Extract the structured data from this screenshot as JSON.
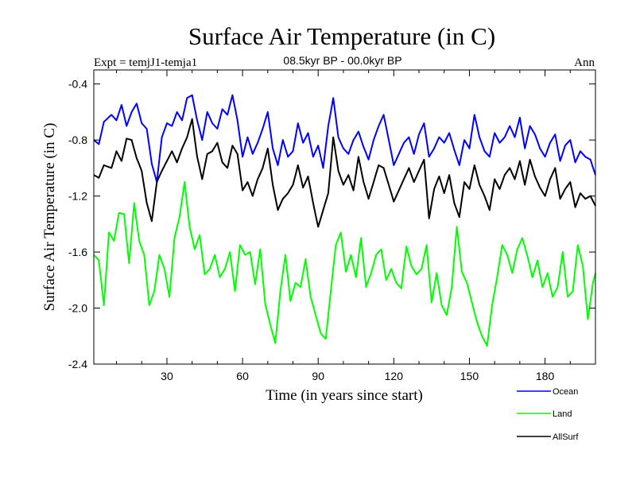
{
  "chart_data": {
    "type": "line",
    "title": "Surface Air Temperature (in C)",
    "subtitle": "08.5kyr BP - 00.0kyr BP",
    "experiment_label": "Expt = temjJ1-temja1",
    "season_label": "Ann",
    "xlabel": "Time (in years since start)",
    "ylabel": "Surface Air Temperature (in C)",
    "xlim": [
      1,
      200
    ],
    "ylim": [
      -2.4,
      -0.3
    ],
    "xticks": [
      30,
      60,
      90,
      120,
      150,
      180
    ],
    "xtick_labels": [
      "30",
      "60",
      "90",
      "120",
      "150",
      "180"
    ],
    "yticks": [
      -0.4,
      -0.8,
      -1.2,
      -1.6,
      -2.0,
      -2.4
    ],
    "ytick_labels": [
      "-0.4",
      "-0.8",
      "-1.2",
      "-1.6",
      "-2.0",
      "-2.4"
    ],
    "legend_position": "bottom-right",
    "series": [
      {
        "name": "Ocean",
        "color": "#0000ff",
        "anchors": [
          [
            1,
            -0.8
          ],
          [
            3,
            -0.83
          ],
          [
            5,
            -0.67
          ],
          [
            8,
            -0.62
          ],
          [
            10,
            -0.66
          ],
          [
            12,
            -0.55
          ],
          [
            14,
            -0.7
          ],
          [
            16,
            -0.6
          ],
          [
            18,
            -0.54
          ],
          [
            20,
            -0.68
          ],
          [
            22,
            -0.72
          ],
          [
            24,
            -0.97
          ],
          [
            26,
            -1.1
          ],
          [
            28,
            -0.78
          ],
          [
            30,
            -0.68
          ],
          [
            32,
            -0.7
          ],
          [
            34,
            -0.6
          ],
          [
            36,
            -0.66
          ],
          [
            38,
            -0.5
          ],
          [
            40,
            -0.48
          ],
          [
            42,
            -0.66
          ],
          [
            44,
            -0.8
          ],
          [
            46,
            -0.6
          ],
          [
            48,
            -0.68
          ],
          [
            50,
            -0.72
          ],
          [
            52,
            -0.58
          ],
          [
            54,
            -0.62
          ],
          [
            56,
            -0.48
          ],
          [
            58,
            -0.66
          ],
          [
            60,
            -0.92
          ],
          [
            62,
            -0.78
          ],
          [
            64,
            -0.9
          ],
          [
            66,
            -0.82
          ],
          [
            68,
            -0.72
          ],
          [
            70,
            -0.6
          ],
          [
            72,
            -0.86
          ],
          [
            74,
            -0.98
          ],
          [
            76,
            -0.8
          ],
          [
            78,
            -0.92
          ],
          [
            80,
            -0.88
          ],
          [
            82,
            -0.68
          ],
          [
            84,
            -0.82
          ],
          [
            86,
            -0.75
          ],
          [
            88,
            -0.92
          ],
          [
            90,
            -0.84
          ],
          [
            92,
            -1.0
          ],
          [
            94,
            -0.7
          ],
          [
            96,
            -0.5
          ],
          [
            98,
            -0.78
          ],
          [
            100,
            -0.86
          ],
          [
            102,
            -0.9
          ],
          [
            104,
            -0.8
          ],
          [
            106,
            -0.74
          ],
          [
            108,
            -0.85
          ],
          [
            110,
            -0.94
          ],
          [
            112,
            -0.8
          ],
          [
            114,
            -0.7
          ],
          [
            116,
            -0.62
          ],
          [
            118,
            -0.8
          ],
          [
            120,
            -0.98
          ],
          [
            122,
            -0.9
          ],
          [
            124,
            -0.82
          ],
          [
            126,
            -0.78
          ],
          [
            128,
            -0.9
          ],
          [
            130,
            -0.76
          ],
          [
            132,
            -0.68
          ],
          [
            134,
            -0.92
          ],
          [
            136,
            -0.86
          ],
          [
            138,
            -0.78
          ],
          [
            140,
            -0.82
          ],
          [
            142,
            -0.75
          ],
          [
            144,
            -0.87
          ],
          [
            146,
            -0.98
          ],
          [
            148,
            -0.8
          ],
          [
            150,
            -0.86
          ],
          [
            152,
            -0.62
          ],
          [
            154,
            -0.78
          ],
          [
            156,
            -0.88
          ],
          [
            158,
            -0.92
          ],
          [
            160,
            -0.75
          ],
          [
            162,
            -0.82
          ],
          [
            164,
            -0.78
          ],
          [
            166,
            -0.7
          ],
          [
            168,
            -0.78
          ],
          [
            170,
            -0.64
          ],
          [
            172,
            -0.86
          ],
          [
            174,
            -0.7
          ],
          [
            176,
            -0.76
          ],
          [
            178,
            -0.86
          ],
          [
            180,
            -0.92
          ],
          [
            182,
            -0.82
          ],
          [
            184,
            -0.76
          ],
          [
            186,
            -0.95
          ],
          [
            188,
            -0.84
          ],
          [
            190,
            -0.8
          ],
          [
            192,
            -0.96
          ],
          [
            194,
            -0.88
          ],
          [
            196,
            -0.92
          ],
          [
            198,
            -0.94
          ],
          [
            200,
            -1.05
          ]
        ]
      },
      {
        "name": "Land",
        "color": "#00ff00",
        "anchors": [
          [
            1,
            -1.62
          ],
          [
            3,
            -1.66
          ],
          [
            5,
            -1.98
          ],
          [
            7,
            -1.46
          ],
          [
            9,
            -1.52
          ],
          [
            11,
            -1.32
          ],
          [
            13,
            -1.33
          ],
          [
            15,
            -1.68
          ],
          [
            17,
            -1.25
          ],
          [
            19,
            -1.52
          ],
          [
            21,
            -1.62
          ],
          [
            23,
            -1.98
          ],
          [
            25,
            -1.88
          ],
          [
            27,
            -1.62
          ],
          [
            29,
            -1.72
          ],
          [
            31,
            -1.92
          ],
          [
            33,
            -1.5
          ],
          [
            35,
            -1.35
          ],
          [
            37,
            -1.1
          ],
          [
            39,
            -1.42
          ],
          [
            41,
            -1.58
          ],
          [
            43,
            -1.48
          ],
          [
            45,
            -1.76
          ],
          [
            47,
            -1.72
          ],
          [
            49,
            -1.62
          ],
          [
            51,
            -1.78
          ],
          [
            53,
            -1.72
          ],
          [
            55,
            -1.6
          ],
          [
            57,
            -1.88
          ],
          [
            59,
            -1.55
          ],
          [
            61,
            -1.62
          ],
          [
            63,
            -1.6
          ],
          [
            65,
            -1.83
          ],
          [
            67,
            -1.58
          ],
          [
            69,
            -1.97
          ],
          [
            71,
            -2.12
          ],
          [
            73,
            -2.25
          ],
          [
            75,
            -1.88
          ],
          [
            77,
            -1.62
          ],
          [
            79,
            -1.95
          ],
          [
            81,
            -1.82
          ],
          [
            83,
            -1.85
          ],
          [
            85,
            -1.65
          ],
          [
            87,
            -1.92
          ],
          [
            89,
            -2.05
          ],
          [
            91,
            -2.18
          ],
          [
            93,
            -2.22
          ],
          [
            95,
            -1.88
          ],
          [
            97,
            -1.55
          ],
          [
            99,
            -1.46
          ],
          [
            101,
            -1.74
          ],
          [
            103,
            -1.62
          ],
          [
            105,
            -1.78
          ],
          [
            107,
            -1.5
          ],
          [
            109,
            -1.85
          ],
          [
            111,
            -1.75
          ],
          [
            113,
            -1.62
          ],
          [
            115,
            -1.58
          ],
          [
            117,
            -1.8
          ],
          [
            119,
            -1.72
          ],
          [
            121,
            -1.82
          ],
          [
            123,
            -1.86
          ],
          [
            125,
            -1.56
          ],
          [
            127,
            -1.7
          ],
          [
            129,
            -1.76
          ],
          [
            131,
            -1.72
          ],
          [
            133,
            -1.55
          ],
          [
            135,
            -1.96
          ],
          [
            137,
            -1.75
          ],
          [
            139,
            -1.98
          ],
          [
            141,
            -2.05
          ],
          [
            143,
            -1.85
          ],
          [
            145,
            -1.42
          ],
          [
            147,
            -1.74
          ],
          [
            149,
            -1.82
          ],
          [
            151,
            -1.96
          ],
          [
            153,
            -2.1
          ],
          [
            155,
            -2.2
          ],
          [
            157,
            -2.27
          ],
          [
            159,
            -1.98
          ],
          [
            161,
            -1.78
          ],
          [
            163,
            -1.55
          ],
          [
            165,
            -1.62
          ],
          [
            167,
            -1.75
          ],
          [
            169,
            -1.58
          ],
          [
            171,
            -1.5
          ],
          [
            173,
            -1.63
          ],
          [
            175,
            -1.78
          ],
          [
            177,
            -1.66
          ],
          [
            179,
            -1.85
          ],
          [
            181,
            -1.75
          ],
          [
            183,
            -1.92
          ],
          [
            185,
            -1.85
          ],
          [
            187,
            -1.6
          ],
          [
            189,
            -1.92
          ],
          [
            191,
            -1.88
          ],
          [
            193,
            -1.55
          ],
          [
            195,
            -1.7
          ],
          [
            197,
            -2.08
          ],
          [
            199,
            -1.82
          ],
          [
            200,
            -1.75
          ]
        ]
      },
      {
        "name": "AllSurf",
        "color": "#000000",
        "anchors": [
          [
            1,
            -1.05
          ],
          [
            3,
            -1.07
          ],
          [
            5,
            -0.98
          ],
          [
            8,
            -1.0
          ],
          [
            10,
            -0.88
          ],
          [
            12,
            -0.95
          ],
          [
            14,
            -0.79
          ],
          [
            16,
            -0.8
          ],
          [
            18,
            -0.93
          ],
          [
            20,
            -1.02
          ],
          [
            22,
            -1.25
          ],
          [
            24,
            -1.38
          ],
          [
            26,
            -1.1
          ],
          [
            28,
            -1.02
          ],
          [
            30,
            -0.95
          ],
          [
            32,
            -0.88
          ],
          [
            34,
            -0.96
          ],
          [
            36,
            -0.86
          ],
          [
            38,
            -0.78
          ],
          [
            40,
            -0.65
          ],
          [
            42,
            -0.92
          ],
          [
            44,
            -1.08
          ],
          [
            46,
            -0.9
          ],
          [
            48,
            -0.88
          ],
          [
            50,
            -0.82
          ],
          [
            52,
            -0.96
          ],
          [
            54,
            -1.0
          ],
          [
            56,
            -0.84
          ],
          [
            58,
            -0.9
          ],
          [
            60,
            -1.16
          ],
          [
            62,
            -1.1
          ],
          [
            64,
            -1.2
          ],
          [
            66,
            -1.08
          ],
          [
            68,
            -1.0
          ],
          [
            70,
            -0.86
          ],
          [
            72,
            -1.12
          ],
          [
            74,
            -1.3
          ],
          [
            76,
            -1.22
          ],
          [
            78,
            -1.18
          ],
          [
            80,
            -1.12
          ],
          [
            82,
            -0.98
          ],
          [
            84,
            -1.14
          ],
          [
            86,
            -1.06
          ],
          [
            88,
            -1.25
          ],
          [
            90,
            -1.42
          ],
          [
            92,
            -1.3
          ],
          [
            94,
            -1.18
          ],
          [
            96,
            -0.78
          ],
          [
            98,
            -1.02
          ],
          [
            100,
            -1.12
          ],
          [
            102,
            -1.05
          ],
          [
            104,
            -1.16
          ],
          [
            106,
            -0.92
          ],
          [
            108,
            -1.1
          ],
          [
            110,
            -1.22
          ],
          [
            112,
            -1.1
          ],
          [
            114,
            -0.98
          ],
          [
            116,
            -1.0
          ],
          [
            118,
            -1.12
          ],
          [
            120,
            -1.24
          ],
          [
            122,
            -1.16
          ],
          [
            124,
            -1.08
          ],
          [
            126,
            -1.0
          ],
          [
            128,
            -1.1
          ],
          [
            130,
            -1.02
          ],
          [
            132,
            -0.94
          ],
          [
            134,
            -1.36
          ],
          [
            136,
            -1.15
          ],
          [
            138,
            -1.06
          ],
          [
            140,
            -1.18
          ],
          [
            142,
            -1.05
          ],
          [
            144,
            -1.25
          ],
          [
            146,
            -1.35
          ],
          [
            148,
            -1.1
          ],
          [
            150,
            -1.15
          ],
          [
            152,
            -0.98
          ],
          [
            154,
            -1.12
          ],
          [
            156,
            -1.2
          ],
          [
            158,
            -1.3
          ],
          [
            160,
            -1.08
          ],
          [
            162,
            -1.15
          ],
          [
            164,
            -1.05
          ],
          [
            166,
            -1.0
          ],
          [
            168,
            -1.08
          ],
          [
            170,
            -0.95
          ],
          [
            172,
            -1.12
          ],
          [
            174,
            -0.94
          ],
          [
            176,
            -1.06
          ],
          [
            178,
            -1.14
          ],
          [
            180,
            -1.2
          ],
          [
            182,
            -1.08
          ],
          [
            184,
            -1.0
          ],
          [
            186,
            -1.22
          ],
          [
            188,
            -1.15
          ],
          [
            190,
            -1.1
          ],
          [
            192,
            -1.28
          ],
          [
            194,
            -1.18
          ],
          [
            196,
            -1.22
          ],
          [
            198,
            -1.2
          ],
          [
            200,
            -1.27
          ]
        ]
      }
    ]
  }
}
